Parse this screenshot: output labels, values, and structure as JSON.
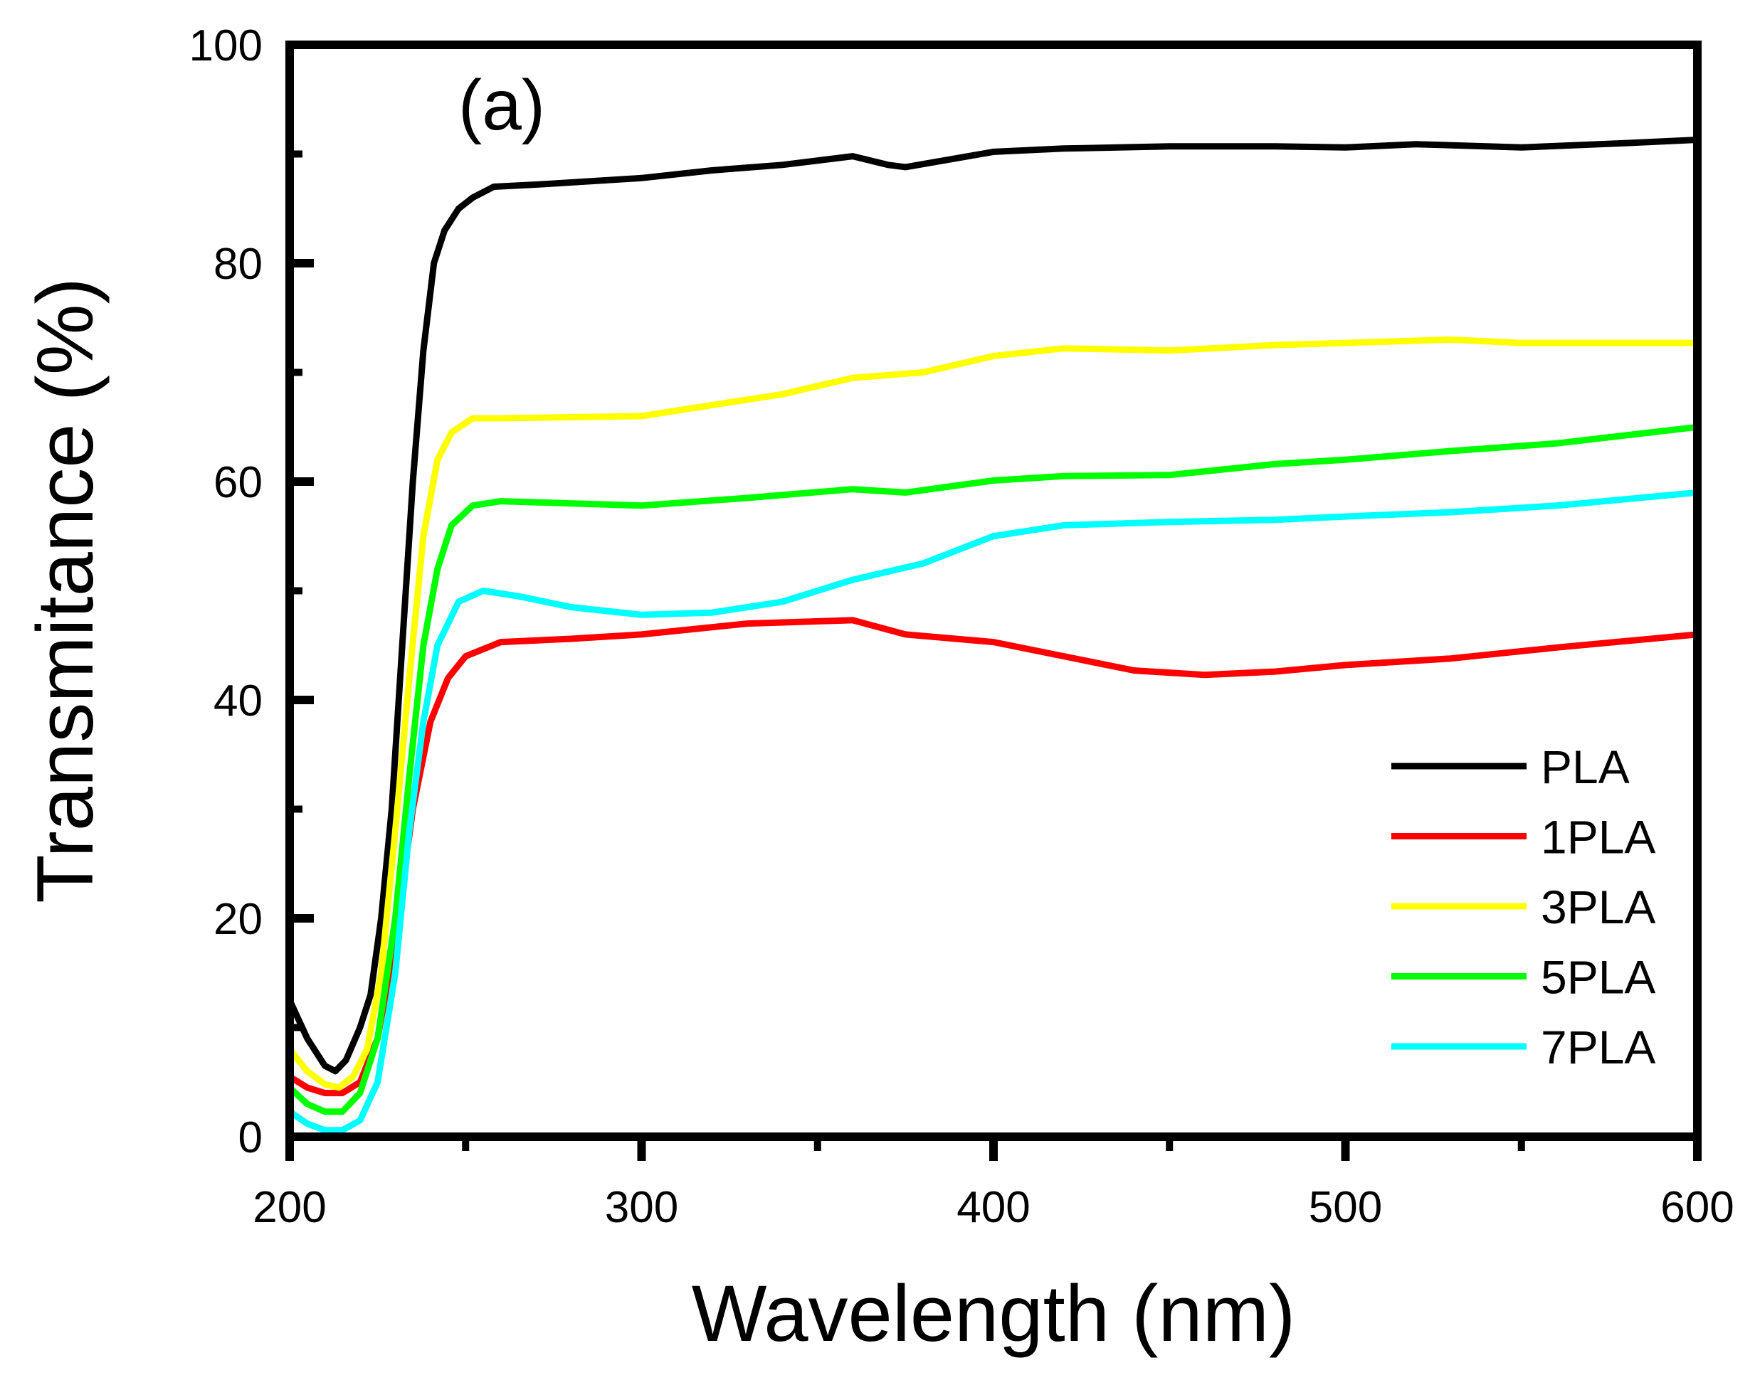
{
  "chart_data": {
    "type": "line",
    "panel_label": "(a)",
    "xlabel": "Wavelength (nm)",
    "ylabel": "Transmitance (%)",
    "xlim": [
      200,
      600
    ],
    "ylim": [
      0,
      100
    ],
    "xticks": [
      200,
      300,
      400,
      500,
      600
    ],
    "yticks": [
      0,
      20,
      40,
      60,
      80,
      100
    ],
    "xtick_labels": [
      "200",
      "300",
      "400",
      "500",
      "600"
    ],
    "ytick_labels": [
      "0",
      "20",
      "40",
      "60",
      "80",
      "100"
    ],
    "grid": false,
    "legend_position": "bottom-right",
    "series": [
      {
        "name": "PLA",
        "color": "#000000",
        "x": [
          200,
          205,
          210,
          213,
          216,
          220,
          223,
          226,
          229,
          232,
          235,
          238,
          241,
          244,
          248,
          252,
          258,
          270,
          300,
          320,
          340,
          360,
          370,
          375,
          400,
          420,
          450,
          480,
          500,
          520,
          550,
          580,
          600
        ],
        "y": [
          12.5,
          9,
          6.5,
          6,
          7,
          10,
          13,
          20,
          30,
          45,
          60,
          72,
          80,
          83,
          85,
          86,
          87,
          87.2,
          87.8,
          88.5,
          89,
          89.8,
          89,
          88.8,
          90.2,
          90.5,
          90.7,
          90.7,
          90.6,
          90.9,
          90.6,
          91,
          91.3
        ]
      },
      {
        "name": "1PLA",
        "color": "#ff0000",
        "x": [
          200,
          205,
          210,
          215,
          220,
          225,
          230,
          235,
          240,
          245,
          250,
          260,
          280,
          300,
          330,
          360,
          375,
          400,
          420,
          440,
          460,
          480,
          500,
          530,
          560,
          600
        ],
        "y": [
          5.5,
          4.5,
          4,
          4,
          5,
          9,
          18,
          30,
          38,
          42,
          44,
          45.3,
          45.6,
          46,
          47,
          47.3,
          46,
          45.3,
          44,
          42.7,
          42.3,
          42.6,
          43.2,
          43.8,
          44.8,
          46
        ]
      },
      {
        "name": "3PLA",
        "color": "#ffff00",
        "x": [
          200,
          205,
          210,
          214,
          218,
          222,
          226,
          230,
          234,
          238,
          242,
          246,
          252,
          260,
          300,
          320,
          340,
          360,
          380,
          400,
          420,
          450,
          480,
          500,
          530,
          550,
          600
        ],
        "y": [
          8,
          6,
          4.8,
          4.5,
          5.5,
          8,
          15,
          28,
          42,
          55,
          62,
          64.5,
          65.8,
          65.8,
          66,
          67,
          68,
          69.5,
          70,
          71.5,
          72.2,
          72,
          72.5,
          72.7,
          73,
          72.7,
          72.7
        ]
      },
      {
        "name": "5PLA",
        "color": "#00ff00",
        "x": [
          200,
          205,
          210,
          215,
          220,
          225,
          230,
          234,
          238,
          242,
          246,
          252,
          260,
          300,
          330,
          360,
          375,
          400,
          420,
          450,
          480,
          500,
          530,
          560,
          600
        ],
        "y": [
          4.5,
          3,
          2.3,
          2.3,
          4,
          9,
          20,
          33,
          45,
          52,
          56,
          57.8,
          58.2,
          57.8,
          58.5,
          59.3,
          59,
          60.1,
          60.5,
          60.6,
          61.6,
          62,
          62.8,
          63.5,
          65
        ]
      },
      {
        "name": "7PLA",
        "color": "#00ffff",
        "x": [
          200,
          205,
          210,
          215,
          220,
          225,
          230,
          234,
          238,
          242,
          248,
          255,
          265,
          280,
          300,
          320,
          340,
          360,
          380,
          400,
          420,
          450,
          480,
          500,
          530,
          560,
          600
        ],
        "y": [
          2.3,
          1.2,
          0.6,
          0.6,
          1.5,
          5,
          15,
          28,
          38,
          45,
          49,
          50,
          49.5,
          48.5,
          47.8,
          48,
          49,
          51,
          52.5,
          55,
          56,
          56.3,
          56.5,
          56.8,
          57.2,
          57.8,
          59
        ]
      }
    ]
  }
}
